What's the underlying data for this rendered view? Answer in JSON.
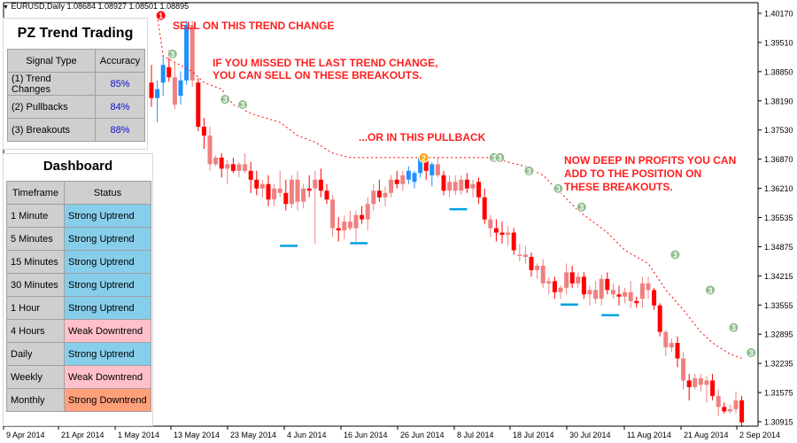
{
  "chart_header": "EURUSD,Daily  1.08684  1.08927  1.08501  1.08895",
  "annotations": {
    "sell_trend_change": "SELL ON THIS TREND CHANGE",
    "missed_line1": "IF YOU MISSED THE LAST TREND CHANGE,",
    "missed_line2": "YOU CAN SELL ON THESE BREAKOUTS.",
    "pullback": "...OR IN THIS PULLBACK",
    "profits_line1": "NOW DEEP IN PROFITS YOU CAN",
    "profits_line2": "ADD TO THE POSITION ON",
    "profits_line3": "THESE BREAKOUTS."
  },
  "signal_panel": {
    "title": "PZ Trend Trading",
    "headers": [
      "Signal Type",
      "Accuracy"
    ],
    "rows": [
      {
        "type": "(1) Trend Changes",
        "accuracy": "85%"
      },
      {
        "type": "(2) Pullbacks",
        "accuracy": "84%"
      },
      {
        "type": "(3) Breakouts",
        "accuracy": "88%"
      }
    ]
  },
  "dashboard": {
    "title": "Dashboard",
    "headers": [
      "Timeframe",
      "Status"
    ],
    "rows": [
      {
        "tf": "1 Minute",
        "status": "Strong Uptrend",
        "color": "#87ceeb"
      },
      {
        "tf": "5 Minutes",
        "status": "Strong Uptrend",
        "color": "#87ceeb"
      },
      {
        "tf": "15 Minutes",
        "status": "Strong Uptrend",
        "color": "#87ceeb"
      },
      {
        "tf": "30 Minutes",
        "status": "Strong Uptrend",
        "color": "#87ceeb"
      },
      {
        "tf": "1 Hour",
        "status": "Strong Uptrend",
        "color": "#87ceeb"
      },
      {
        "tf": "4 Hours",
        "status": "Weak Downtrend",
        "color": "#ffc0cb"
      },
      {
        "tf": "Daily",
        "status": "Strong Uptrend",
        "color": "#87ceeb"
      },
      {
        "tf": "Weekly",
        "status": "Weak Downtrend",
        "color": "#ffc0cb"
      },
      {
        "tf": "Monthly",
        "status": "Strong Downtrend",
        "color": "#ffa07a"
      }
    ]
  },
  "chart_data": {
    "type": "candlestick",
    "symbol": "EURUSD",
    "timeframe": "Daily",
    "y_ticks": [
      "1.40170",
      "1.39510",
      "1.38850",
      "1.38190",
      "1.37530",
      "1.36870",
      "1.36210",
      "1.35535",
      "1.34875",
      "1.34215",
      "1.33555",
      "1.32895",
      "1.32235",
      "1.31575",
      "1.30915"
    ],
    "x_ticks": [
      "9 Apr 2014",
      "21 Apr 2014",
      "1 May 2014",
      "13 May 2014",
      "23 May 2014",
      "4 Jun 2014",
      "16 Jun 2014",
      "26 Jun 2014",
      "8 Jul 2014",
      "18 Jul 2014",
      "30 Jul 2014",
      "11 Aug 2014",
      "21 Aug 2014",
      "2 Sep 2014"
    ],
    "ylim": [
      1.3087,
      1.4026
    ],
    "colors": {
      "bear": "#ff0000",
      "bear_light": "#f08080",
      "bull": "#1e90ff",
      "bull_light": "#87cefa",
      "stop": "#ff0000",
      "signal_green": "#8fbc8f",
      "signal_orange": "#ffa500",
      "signal_red": "#ff0000",
      "breakout_line": "#00a0e0"
    },
    "candles": [
      {
        "o": 1.386,
        "h": 1.39,
        "l": 1.3805,
        "c": 1.3825
      },
      {
        "o": 1.3825,
        "h": 1.3865,
        "l": 1.377,
        "c": 1.3845
      },
      {
        "o": 1.386,
        "h": 1.392,
        "l": 1.383,
        "c": 1.39
      },
      {
        "o": 1.3895,
        "h": 1.3935,
        "l": 1.3862,
        "c": 1.3872
      },
      {
        "o": 1.3872,
        "h": 1.3905,
        "l": 1.38,
        "c": 1.381
      },
      {
        "o": 1.383,
        "h": 1.3885,
        "l": 1.381,
        "c": 1.3865
      },
      {
        "o": 1.3865,
        "h": 1.4,
        "l": 1.3855,
        "c": 1.399
      },
      {
        "o": 1.399,
        "h": 1.4,
        "l": 1.385,
        "c": 1.3865
      },
      {
        "o": 1.386,
        "h": 1.387,
        "l": 1.375,
        "c": 1.376
      },
      {
        "o": 1.376,
        "h": 1.378,
        "l": 1.371,
        "c": 1.374
      },
      {
        "o": 1.374,
        "h": 1.376,
        "l": 1.366,
        "c": 1.3675
      },
      {
        "o": 1.3675,
        "h": 1.3695,
        "l": 1.367,
        "c": 1.369
      },
      {
        "o": 1.369,
        "h": 1.37,
        "l": 1.3645,
        "c": 1.3665
      },
      {
        "o": 1.3665,
        "h": 1.3685,
        "l": 1.363,
        "c": 1.3675
      },
      {
        "o": 1.3675,
        "h": 1.369,
        "l": 1.3655,
        "c": 1.366
      },
      {
        "o": 1.366,
        "h": 1.368,
        "l": 1.3645,
        "c": 1.3675
      },
      {
        "o": 1.3675,
        "h": 1.37,
        "l": 1.3655,
        "c": 1.366
      },
      {
        "o": 1.366,
        "h": 1.368,
        "l": 1.361,
        "c": 1.364
      },
      {
        "o": 1.364,
        "h": 1.366,
        "l": 1.3605,
        "c": 1.362
      },
      {
        "o": 1.362,
        "h": 1.364,
        "l": 1.36,
        "c": 1.363
      },
      {
        "o": 1.363,
        "h": 1.365,
        "l": 1.358,
        "c": 1.3595
      },
      {
        "o": 1.3595,
        "h": 1.363,
        "l": 1.358,
        "c": 1.362
      },
      {
        "o": 1.362,
        "h": 1.366,
        "l": 1.36,
        "c": 1.361
      },
      {
        "o": 1.361,
        "h": 1.364,
        "l": 1.357,
        "c": 1.3585
      },
      {
        "o": 1.3585,
        "h": 1.365,
        "l": 1.3575,
        "c": 1.364
      },
      {
        "o": 1.364,
        "h": 1.366,
        "l": 1.357,
        "c": 1.359
      },
      {
        "o": 1.359,
        "h": 1.363,
        "l": 1.3575,
        "c": 1.362
      },
      {
        "o": 1.362,
        "h": 1.365,
        "l": 1.36,
        "c": 1.3615
      },
      {
        "o": 1.362,
        "h": 1.366,
        "l": 1.3495,
        "c": 1.364
      },
      {
        "o": 1.364,
        "h": 1.3665,
        "l": 1.36,
        "c": 1.3615
      },
      {
        "o": 1.3615,
        "h": 1.363,
        "l": 1.3585,
        "c": 1.3595
      },
      {
        "o": 1.3595,
        "h": 1.3605,
        "l": 1.351,
        "c": 1.353
      },
      {
        "o": 1.353,
        "h": 1.3555,
        "l": 1.35,
        "c": 1.3525
      },
      {
        "o": 1.3525,
        "h": 1.356,
        "l": 1.3505,
        "c": 1.3545
      },
      {
        "o": 1.3545,
        "h": 1.357,
        "l": 1.3525,
        "c": 1.353
      },
      {
        "o": 1.353,
        "h": 1.357,
        "l": 1.35,
        "c": 1.356
      },
      {
        "o": 1.356,
        "h": 1.358,
        "l": 1.354,
        "c": 1.355
      },
      {
        "o": 1.355,
        "h": 1.36,
        "l": 1.3525,
        "c": 1.3585
      },
      {
        "o": 1.3585,
        "h": 1.363,
        "l": 1.357,
        "c": 1.3615
      },
      {
        "o": 1.3615,
        "h": 1.364,
        "l": 1.359,
        "c": 1.36
      },
      {
        "o": 1.36,
        "h": 1.3625,
        "l": 1.358,
        "c": 1.361
      },
      {
        "o": 1.361,
        "h": 1.365,
        "l": 1.36,
        "c": 1.364
      },
      {
        "o": 1.364,
        "h": 1.366,
        "l": 1.362,
        "c": 1.363
      },
      {
        "o": 1.363,
        "h": 1.366,
        "l": 1.3615,
        "c": 1.365
      },
      {
        "o": 1.364,
        "h": 1.367,
        "l": 1.363,
        "c": 1.366
      },
      {
        "o": 1.3635,
        "h": 1.366,
        "l": 1.362,
        "c": 1.3655
      },
      {
        "o": 1.3655,
        "h": 1.3695,
        "l": 1.3645,
        "c": 1.369
      },
      {
        "o": 1.369,
        "h": 1.3695,
        "l": 1.364,
        "c": 1.366
      },
      {
        "o": 1.365,
        "h": 1.368,
        "l": 1.3625,
        "c": 1.3675
      },
      {
        "o": 1.3675,
        "h": 1.369,
        "l": 1.3645,
        "c": 1.365
      },
      {
        "o": 1.365,
        "h": 1.366,
        "l": 1.3605,
        "c": 1.3615
      },
      {
        "o": 1.3615,
        "h": 1.365,
        "l": 1.36,
        "c": 1.3635
      },
      {
        "o": 1.3635,
        "h": 1.365,
        "l": 1.3605,
        "c": 1.3615
      },
      {
        "o": 1.3615,
        "h": 1.365,
        "l": 1.3605,
        "c": 1.364
      },
      {
        "o": 1.364,
        "h": 1.3655,
        "l": 1.361,
        "c": 1.362
      },
      {
        "o": 1.362,
        "h": 1.364,
        "l": 1.36,
        "c": 1.363
      },
      {
        "o": 1.3635,
        "h": 1.3645,
        "l": 1.3585,
        "c": 1.36
      },
      {
        "o": 1.36,
        "h": 1.362,
        "l": 1.354,
        "c": 1.355
      },
      {
        "o": 1.355,
        "h": 1.356,
        "l": 1.351,
        "c": 1.353
      },
      {
        "o": 1.353,
        "h": 1.355,
        "l": 1.35,
        "c": 1.352
      },
      {
        "o": 1.352,
        "h": 1.3545,
        "l": 1.3495,
        "c": 1.3515
      },
      {
        "o": 1.3515,
        "h": 1.3535,
        "l": 1.349,
        "c": 1.352
      },
      {
        "o": 1.352,
        "h": 1.353,
        "l": 1.347,
        "c": 1.348
      },
      {
        "o": 1.347,
        "h": 1.3495,
        "l": 1.3455,
        "c": 1.347
      },
      {
        "o": 1.347,
        "h": 1.349,
        "l": 1.345,
        "c": 1.3465
      },
      {
        "o": 1.3465,
        "h": 1.3475,
        "l": 1.342,
        "c": 1.3435
      },
      {
        "o": 1.3435,
        "h": 1.345,
        "l": 1.3415,
        "c": 1.3445
      },
      {
        "o": 1.3445,
        "h": 1.346,
        "l": 1.3395,
        "c": 1.3405
      },
      {
        "o": 1.3405,
        "h": 1.342,
        "l": 1.338,
        "c": 1.341
      },
      {
        "o": 1.341,
        "h": 1.342,
        "l": 1.337,
        "c": 1.3385
      },
      {
        "o": 1.3385,
        "h": 1.34,
        "l": 1.337,
        "c": 1.3395
      },
      {
        "o": 1.3395,
        "h": 1.345,
        "l": 1.338,
        "c": 1.343
      },
      {
        "o": 1.343,
        "h": 1.3445,
        "l": 1.3395,
        "c": 1.3405
      },
      {
        "o": 1.3405,
        "h": 1.343,
        "l": 1.3395,
        "c": 1.342
      },
      {
        "o": 1.342,
        "h": 1.343,
        "l": 1.337,
        "c": 1.338
      },
      {
        "o": 1.338,
        "h": 1.34,
        "l": 1.3355,
        "c": 1.339
      },
      {
        "o": 1.339,
        "h": 1.341,
        "l": 1.336,
        "c": 1.337
      },
      {
        "o": 1.337,
        "h": 1.3425,
        "l": 1.3355,
        "c": 1.3415
      },
      {
        "o": 1.3415,
        "h": 1.343,
        "l": 1.338,
        "c": 1.339
      },
      {
        "o": 1.339,
        "h": 1.3405,
        "l": 1.337,
        "c": 1.338
      },
      {
        "o": 1.338,
        "h": 1.34,
        "l": 1.3355,
        "c": 1.3375
      },
      {
        "o": 1.3375,
        "h": 1.3395,
        "l": 1.336,
        "c": 1.3385
      },
      {
        "o": 1.3385,
        "h": 1.341,
        "l": 1.335,
        "c": 1.3365
      },
      {
        "o": 1.3365,
        "h": 1.3375,
        "l": 1.335,
        "c": 1.336
      },
      {
        "o": 1.337,
        "h": 1.342,
        "l": 1.335,
        "c": 1.3405
      },
      {
        "o": 1.3405,
        "h": 1.342,
        "l": 1.337,
        "c": 1.339
      },
      {
        "o": 1.339,
        "h": 1.3395,
        "l": 1.3345,
        "c": 1.3355
      },
      {
        "o": 1.3355,
        "h": 1.336,
        "l": 1.3285,
        "c": 1.3295
      },
      {
        "o": 1.3295,
        "h": 1.33,
        "l": 1.324,
        "c": 1.326
      },
      {
        "o": 1.326,
        "h": 1.328,
        "l": 1.325,
        "c": 1.327
      },
      {
        "o": 1.327,
        "h": 1.3285,
        "l": 1.3215,
        "c": 1.3235
      },
      {
        "o": 1.3235,
        "h": 1.325,
        "l": 1.3165,
        "c": 1.3185
      },
      {
        "o": 1.3185,
        "h": 1.32,
        "l": 1.314,
        "c": 1.317
      },
      {
        "o": 1.317,
        "h": 1.32,
        "l": 1.3165,
        "c": 1.319
      },
      {
        "o": 1.319,
        "h": 1.32,
        "l": 1.316,
        "c": 1.3175
      },
      {
        "o": 1.3175,
        "h": 1.3195,
        "l": 1.3135,
        "c": 1.3185
      },
      {
        "o": 1.3185,
        "h": 1.32,
        "l": 1.314,
        "c": 1.315
      },
      {
        "o": 1.315,
        "h": 1.3165,
        "l": 1.3105,
        "c": 1.3125
      },
      {
        "o": 1.3125,
        "h": 1.3135,
        "l": 1.311,
        "c": 1.3115
      },
      {
        "o": 1.3115,
        "h": 1.313,
        "l": 1.311,
        "c": 1.312
      },
      {
        "o": 1.312,
        "h": 1.316,
        "l": 1.311,
        "c": 1.314
      },
      {
        "o": 1.314,
        "h": 1.315,
        "l": 1.308,
        "c": 1.309
      }
    ],
    "stop_line": [
      {
        "i": 1,
        "v": 1.4012
      },
      {
        "i": 2,
        "v": 1.392
      },
      {
        "i": 7,
        "v": 1.3885
      },
      {
        "i": 9,
        "v": 1.386
      },
      {
        "i": 12,
        "v": 1.3845
      },
      {
        "i": 14,
        "v": 1.381
      },
      {
        "i": 17,
        "v": 1.379
      },
      {
        "i": 22,
        "v": 1.377
      },
      {
        "i": 25,
        "v": 1.374
      },
      {
        "i": 28,
        "v": 1.3725
      },
      {
        "i": 31,
        "v": 1.37
      },
      {
        "i": 34,
        "v": 1.369
      },
      {
        "i": 48,
        "v": 1.369
      },
      {
        "i": 58,
        "v": 1.369
      },
      {
        "i": 64,
        "v": 1.367
      },
      {
        "i": 67,
        "v": 1.365
      },
      {
        "i": 70,
        "v": 1.361
      },
      {
        "i": 73,
        "v": 1.357
      },
      {
        "i": 78,
        "v": 1.352
      },
      {
        "i": 81,
        "v": 1.348
      },
      {
        "i": 85,
        "v": 1.345
      },
      {
        "i": 88,
        "v": 1.339
      },
      {
        "i": 91,
        "v": 1.3345
      },
      {
        "i": 94,
        "v": 1.3295
      },
      {
        "i": 96,
        "v": 1.327
      },
      {
        "i": 99,
        "v": 1.3245
      },
      {
        "i": 101,
        "v": 1.3235
      }
    ],
    "signals": [
      {
        "i": 1,
        "v": 1.4012,
        "label": "1",
        "kind": "red"
      },
      {
        "i": 3,
        "v": 1.3925,
        "label": "3",
        "kind": "green"
      },
      {
        "i": 12,
        "v": 1.3822,
        "label": "3",
        "kind": "green"
      },
      {
        "i": 15,
        "v": 1.381,
        "label": "3",
        "kind": "green"
      },
      {
        "i": 46,
        "v": 1.369,
        "label": "2",
        "kind": "orange"
      },
      {
        "i": 58,
        "v": 1.369,
        "label": "3",
        "kind": "green"
      },
      {
        "i": 59,
        "v": 1.369,
        "label": "3",
        "kind": "green"
      },
      {
        "i": 64,
        "v": 1.366,
        "label": "3",
        "kind": "green"
      },
      {
        "i": 69,
        "v": 1.362,
        "label": "3",
        "kind": "green"
      },
      {
        "i": 73,
        "v": 1.3578,
        "label": "3",
        "kind": "green"
      },
      {
        "i": 89,
        "v": 1.347,
        "label": "3",
        "kind": "green"
      },
      {
        "i": 95,
        "v": 1.339,
        "label": "3",
        "kind": "green"
      },
      {
        "i": 99,
        "v": 1.3305,
        "label": "3",
        "kind": "green"
      },
      {
        "i": 102,
        "v": 1.3248,
        "label": "3",
        "kind": "green"
      }
    ],
    "breakout_levels": [
      {
        "i0": 22,
        "i1": 25,
        "v": 1.349
      },
      {
        "i0": 34,
        "i1": 37,
        "v": 1.3496
      },
      {
        "i0": 51,
        "i1": 54,
        "v": 1.3573
      },
      {
        "i0": 70,
        "i1": 73,
        "v": 1.3357
      },
      {
        "i0": 77,
        "i1": 80,
        "v": 1.3333
      }
    ]
  }
}
